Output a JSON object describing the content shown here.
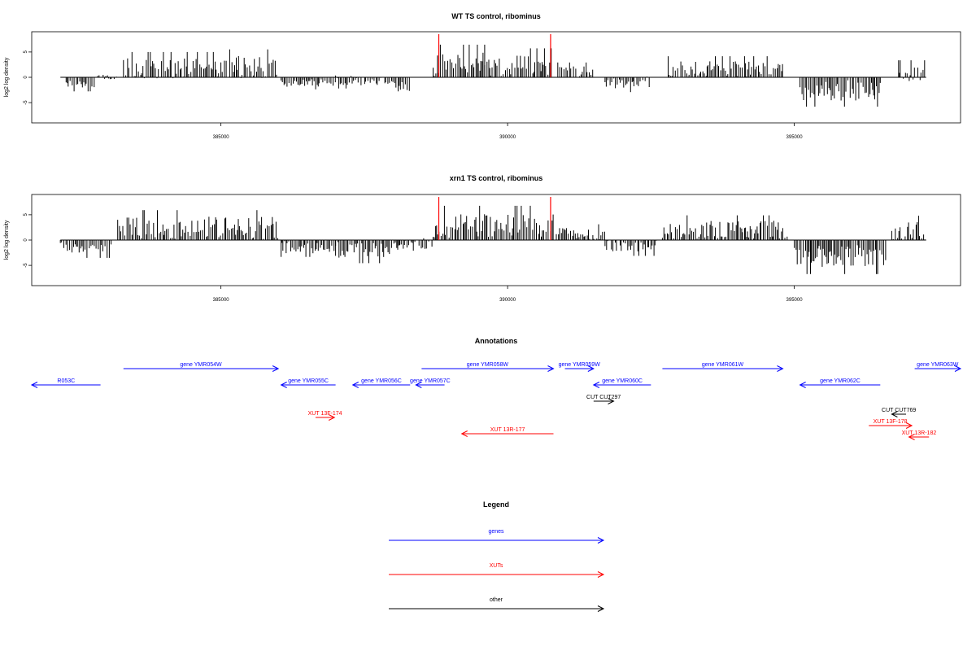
{
  "chart_data": [
    {
      "type": "bar",
      "title": "WT TS control, ribominus",
      "ylabel": "log2 log density",
      "xlim": [
        381700,
        397900
      ],
      "ylim": [
        -9,
        9
      ],
      "x_ticks": [
        385000,
        390000,
        395000
      ],
      "x_tick_labels": [
        "385000",
        "390000",
        "395000"
      ],
      "y_ticks": [
        -5,
        0,
        5
      ],
      "y_tick_labels": [
        "-5",
        "0",
        "5"
      ],
      "baseline": {
        "from": 382200,
        "to": 397300
      },
      "marker_lines": {
        "color": "#ff0000",
        "x": [
          388800,
          390750
        ]
      },
      "bar_color": "#000000",
      "regions": [
        {
          "start": 382300,
          "end": 382800,
          "mean": -1.5,
          "amp": 0.8
        },
        {
          "start": 382850,
          "end": 383200,
          "mean": 0.0,
          "amp": 0.5
        },
        {
          "start": 383300,
          "end": 385000,
          "mean": 1.8,
          "amp": 2.0
        },
        {
          "start": 385000,
          "end": 386000,
          "mean": 2.0,
          "amp": 2.2
        },
        {
          "start": 386050,
          "end": 387000,
          "mean": -1.1,
          "amp": 0.8
        },
        {
          "start": 387000,
          "end": 388000,
          "mean": -0.6,
          "amp": 1.0
        },
        {
          "start": 388000,
          "end": 388300,
          "mean": -1.8,
          "amp": 1.0
        },
        {
          "start": 388700,
          "end": 389600,
          "mean": 2.6,
          "amp": 2.4
        },
        {
          "start": 389600,
          "end": 390800,
          "mean": 2.2,
          "amp": 2.2
        },
        {
          "start": 390850,
          "end": 391500,
          "mean": 1.0,
          "amp": 1.2
        },
        {
          "start": 391700,
          "end": 392500,
          "mean": -1.0,
          "amp": 1.2
        },
        {
          "start": 392800,
          "end": 394800,
          "mean": 1.6,
          "amp": 1.6
        },
        {
          "start": 395100,
          "end": 396500,
          "mean": -2.6,
          "amp": 2.0
        },
        {
          "start": 396800,
          "end": 397300,
          "mean": 0.8,
          "amp": 1.6
        }
      ]
    },
    {
      "type": "bar",
      "title": "xrn1 TS control, ribominus",
      "ylabel": "log2 log density",
      "xlim": [
        381700,
        397900
      ],
      "ylim": [
        -9,
        9
      ],
      "x_ticks": [
        385000,
        390000,
        395000
      ],
      "x_tick_labels": [
        "385000",
        "390000",
        "395000"
      ],
      "y_ticks": [
        -5,
        0,
        5
      ],
      "y_tick_labels": [
        "-5",
        "0",
        "5"
      ],
      "baseline": {
        "from": 382200,
        "to": 397300
      },
      "marker_lines": {
        "color": "#ff0000",
        "x": [
          388800,
          390750
        ]
      },
      "bar_color": "#000000",
      "regions": [
        {
          "start": 382200,
          "end": 383100,
          "mean": -1.6,
          "amp": 1.2
        },
        {
          "start": 383200,
          "end": 386000,
          "mean": 2.4,
          "amp": 2.2
        },
        {
          "start": 386050,
          "end": 387000,
          "mean": -1.4,
          "amp": 1.2
        },
        {
          "start": 387000,
          "end": 388100,
          "mean": -2.0,
          "amp": 1.6
        },
        {
          "start": 388100,
          "end": 388700,
          "mean": -0.8,
          "amp": 1.4
        },
        {
          "start": 388700,
          "end": 390800,
          "mean": 2.6,
          "amp": 2.6
        },
        {
          "start": 390850,
          "end": 391700,
          "mean": 1.2,
          "amp": 1.2
        },
        {
          "start": 391700,
          "end": 392600,
          "mean": -1.2,
          "amp": 1.2
        },
        {
          "start": 392700,
          "end": 394900,
          "mean": 2.0,
          "amp": 1.8
        },
        {
          "start": 395000,
          "end": 396600,
          "mean": -3.2,
          "amp": 2.2
        },
        {
          "start": 396700,
          "end": 397300,
          "mean": 1.6,
          "amp": 2.0
        }
      ]
    },
    {
      "type": "diagram",
      "title": "Annotations",
      "xlim": [
        381700,
        397900
      ],
      "features": [
        {
          "label": "R053C",
          "color": "#0000ff",
          "dir": "-",
          "start": 381700,
          "end": 382900,
          "row": 1
        },
        {
          "label": "gene YMR054W",
          "color": "#0000ff",
          "dir": "+",
          "start": 383300,
          "end": 386000,
          "row": 0
        },
        {
          "label": "gene YMR055C",
          "color": "#0000ff",
          "dir": "-",
          "start": 386050,
          "end": 387000,
          "row": 1
        },
        {
          "label": "gene YMR056C",
          "color": "#0000ff",
          "dir": "-",
          "start": 387300,
          "end": 388300,
          "row": 1
        },
        {
          "label": "gene YMR057C",
          "color": "#0000ff",
          "dir": "-",
          "start": 388400,
          "end": 388900,
          "row": 1
        },
        {
          "label": "gene YMR058W",
          "color": "#0000ff",
          "dir": "+",
          "start": 388500,
          "end": 390800,
          "row": 0
        },
        {
          "label": "gene YMR059W",
          "color": "#0000ff",
          "dir": "+",
          "start": 391000,
          "end": 391500,
          "row": 0
        },
        {
          "label": "gene YMR060C",
          "color": "#0000ff",
          "dir": "-",
          "start": 391500,
          "end": 392500,
          "row": 1
        },
        {
          "label": "gene YMR061W",
          "color": "#0000ff",
          "dir": "+",
          "start": 392700,
          "end": 394800,
          "row": 0
        },
        {
          "label": "gene YMR062C",
          "color": "#0000ff",
          "dir": "-",
          "start": 395100,
          "end": 396500,
          "row": 1
        },
        {
          "label": "gene YMR063W",
          "color": "#0000ff",
          "dir": "+",
          "start": 397100,
          "end": 397900,
          "row": 0
        },
        {
          "label": "CUT CUT297",
          "color": "#000000",
          "dir": "+",
          "start": 391500,
          "end": 391850,
          "row": 2
        },
        {
          "label": "XUT 13F-174",
          "color": "#ff0000",
          "dir": "+",
          "start": 386650,
          "end": 386980,
          "row": 3
        },
        {
          "label": "XUT 13R-177",
          "color": "#ff0000",
          "dir": "-",
          "start": 389200,
          "end": 390800,
          "row": 4
        },
        {
          "label": "CUT CUT769",
          "color": "#000000",
          "dir": "-",
          "start": 396700,
          "end": 396950,
          "row": 2.8
        },
        {
          "label": "XUT 13F-178",
          "color": "#ff0000",
          "dir": "+",
          "start": 396300,
          "end": 397050,
          "row": 3.5
        },
        {
          "label": "XUT 13R-182",
          "color": "#ff0000",
          "dir": "-",
          "start": 397000,
          "end": 397350,
          "row": 4.2
        }
      ]
    },
    {
      "type": "legend",
      "title": "Legend",
      "entries": [
        {
          "label": "genes",
          "color": "#0000ff"
        },
        {
          "label": "XUTs",
          "color": "#ff0000"
        },
        {
          "label": "other",
          "color": "#000000"
        }
      ]
    }
  ]
}
